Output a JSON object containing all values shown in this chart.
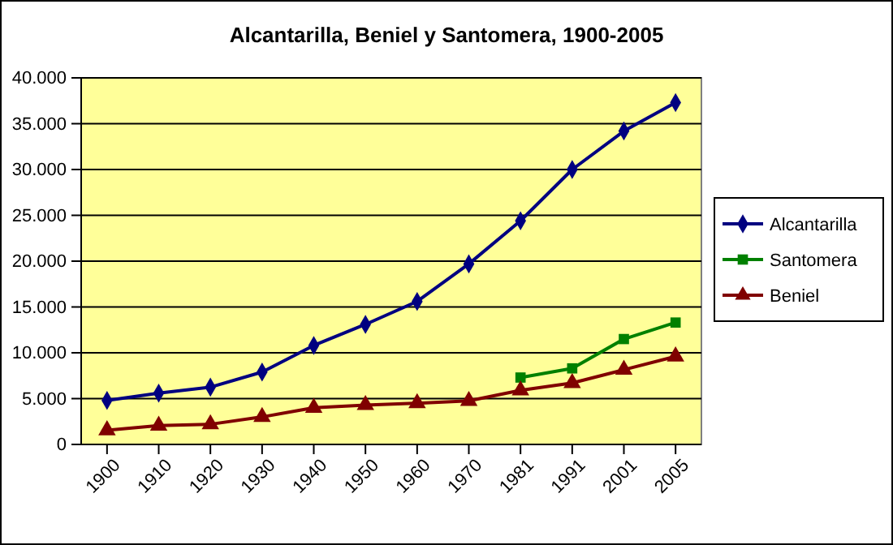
{
  "chart_data": {
    "type": "line",
    "title": "Alcantarilla, Beniel y Santomera, 1900-2005",
    "categories": [
      "1900",
      "1910",
      "1920",
      "1930",
      "1940",
      "1950",
      "1960",
      "1970",
      "1981",
      "1991",
      "2001",
      "2005"
    ],
    "series": [
      {
        "name": "Alcantarilla",
        "color": "#000080",
        "marker": "diamond",
        "values": [
          4800,
          5600,
          6250,
          7900,
          10800,
          13100,
          15600,
          19700,
          24400,
          30000,
          34200,
          37300
        ]
      },
      {
        "name": "Santomera",
        "color": "#008000",
        "marker": "square",
        "values": [
          null,
          null,
          null,
          null,
          null,
          null,
          null,
          null,
          7300,
          8300,
          11500,
          13300
        ]
      },
      {
        "name": "Beniel",
        "color": "#800000",
        "marker": "triangle",
        "values": [
          1550,
          2050,
          2200,
          3000,
          4000,
          4300,
          4500,
          4750,
          5900,
          6700,
          8150,
          9600
        ]
      }
    ],
    "ylim": [
      0,
      40000
    ],
    "yticks": [
      0,
      {
        "value": 5000,
        "label": "5.000"
      },
      {
        "value": 10000,
        "label": "10.000"
      },
      {
        "value": 15000,
        "label": "15.000"
      },
      {
        "value": 20000,
        "label": "20.000"
      },
      {
        "value": 25000,
        "label": "25.000"
      },
      {
        "value": 30000,
        "label": "30.000"
      },
      {
        "value": 35000,
        "label": "35.000"
      },
      {
        "value": 40000,
        "label": "40.000"
      }
    ],
    "grid": "y",
    "legend": "right",
    "line_style": "solid"
  }
}
